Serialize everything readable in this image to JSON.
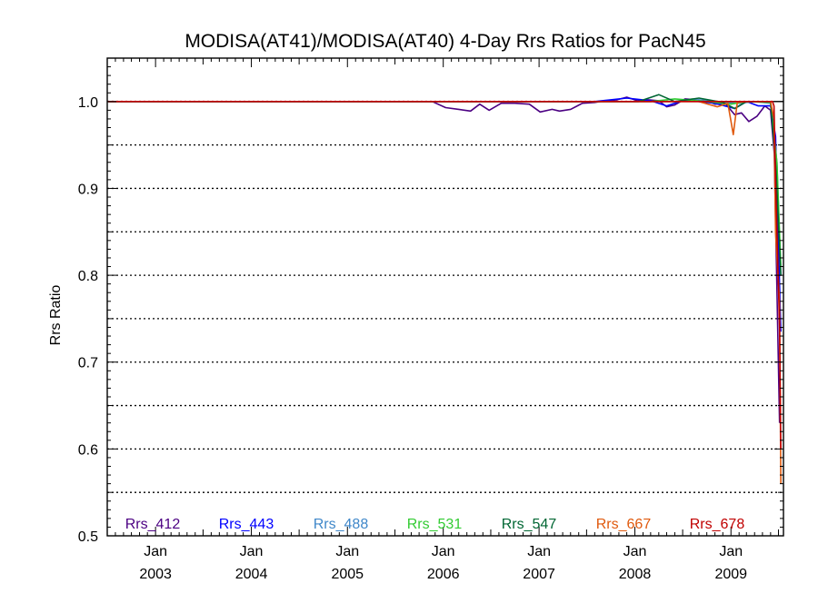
{
  "chart_data": {
    "type": "line",
    "title": "MODISA(AT41)/MODISA(AT40) 4-Day Rrs Ratios for PacN45",
    "ylabel": "Rrs Ratio",
    "xlabel": "",
    "xlim": [
      "2002-07-01",
      "2009-07-20"
    ],
    "ylim": [
      0.5,
      1.05
    ],
    "yticks": [
      {
        "value": 0.5,
        "label": "0.5"
      },
      {
        "value": 0.6,
        "label": "0.6"
      },
      {
        "value": 0.7,
        "label": "0.7"
      },
      {
        "value": 0.8,
        "label": "0.8"
      },
      {
        "value": 0.9,
        "label": "0.9"
      },
      {
        "value": 1.0,
        "label": "1.0"
      }
    ],
    "xticks": [
      {
        "date": "2003-01-01",
        "month": "Jan",
        "year": "2003"
      },
      {
        "date": "2004-01-01",
        "month": "Jan",
        "year": "2004"
      },
      {
        "date": "2005-01-01",
        "month": "Jan",
        "year": "2005"
      },
      {
        "date": "2006-01-01",
        "month": "Jan",
        "year": "2006"
      },
      {
        "date": "2007-01-01",
        "month": "Jan",
        "year": "2007"
      },
      {
        "date": "2008-01-01",
        "month": "Jan",
        "year": "2008"
      },
      {
        "date": "2009-01-01",
        "month": "Jan",
        "year": "2009"
      }
    ],
    "gridlines": [
      0.55,
      0.6,
      0.65,
      0.7,
      0.75,
      0.8,
      0.85,
      0.9,
      0.95
    ],
    "reference_line": 1.0,
    "legend_position": "bottom",
    "series": [
      {
        "name": "Rrs_412",
        "color": "#4b0082",
        "points": [
          [
            "2002-07-04",
            1.0
          ],
          [
            "2005-11-20",
            1.0
          ],
          [
            "2006-01-10",
            0.993
          ],
          [
            "2006-03-01",
            0.991
          ],
          [
            "2006-04-15",
            0.989
          ],
          [
            "2006-05-20",
            0.997
          ],
          [
            "2006-06-25",
            0.99
          ],
          [
            "2006-08-10",
            0.998
          ],
          [
            "2006-10-01",
            0.998
          ],
          [
            "2006-11-25",
            0.997
          ],
          [
            "2007-01-05",
            0.988
          ],
          [
            "2007-02-20",
            0.991
          ],
          [
            "2007-03-20",
            0.989
          ],
          [
            "2007-05-01",
            0.991
          ],
          [
            "2007-06-15",
            0.998
          ],
          [
            "2007-08-01",
            0.999
          ],
          [
            "2007-09-10",
            1.001
          ],
          [
            "2007-10-25",
            1.002
          ],
          [
            "2007-12-01",
            1.005
          ],
          [
            "2008-01-10",
            1.001
          ],
          [
            "2008-02-20",
            1.002
          ],
          [
            "2008-04-01",
            1.001
          ],
          [
            "2008-05-01",
            0.994
          ],
          [
            "2008-06-01",
            0.996
          ],
          [
            "2008-07-10",
            1.003
          ],
          [
            "2008-08-20",
            1.002
          ],
          [
            "2008-10-01",
            1.001
          ],
          [
            "2008-11-01",
            0.997
          ],
          [
            "2008-12-10",
            0.998
          ],
          [
            "2009-01-15",
            0.985
          ],
          [
            "2009-02-10",
            0.987
          ],
          [
            "2009-03-10",
            0.977
          ],
          [
            "2009-04-10",
            0.983
          ],
          [
            "2009-05-10",
            0.995
          ],
          [
            "2009-06-01",
            0.99
          ],
          [
            "2009-06-15",
            0.94
          ],
          [
            "2009-07-05",
            0.63
          ]
        ]
      },
      {
        "name": "Rrs_443",
        "color": "#0000ff",
        "points": [
          [
            "2002-07-04",
            1.0
          ],
          [
            "2007-03-01",
            1.0
          ],
          [
            "2007-08-01",
            1.0
          ],
          [
            "2007-12-01",
            1.004
          ],
          [
            "2008-03-01",
            1.001
          ],
          [
            "2008-05-01",
            0.995
          ],
          [
            "2008-07-10",
            1.002
          ],
          [
            "2008-09-01",
            1.0
          ],
          [
            "2008-11-01",
            0.998
          ],
          [
            "2009-01-15",
            0.992
          ],
          [
            "2009-03-01",
            1.0
          ],
          [
            "2009-04-15",
            0.995
          ],
          [
            "2009-06-01",
            0.995
          ],
          [
            "2009-06-20",
            0.96
          ],
          [
            "2009-07-10",
            0.735
          ]
        ]
      },
      {
        "name": "Rrs_488",
        "color": "#3f87c9",
        "points": [
          [
            "2002-07-04",
            1.0
          ],
          [
            "2008-01-01",
            1.0
          ],
          [
            "2008-06-01",
            1.0
          ],
          [
            "2008-09-01",
            1.002
          ],
          [
            "2008-12-01",
            0.999
          ],
          [
            "2009-02-01",
            0.998
          ],
          [
            "2009-04-01",
            1.0
          ],
          [
            "2009-06-01",
            0.998
          ],
          [
            "2009-06-25",
            0.93
          ],
          [
            "2009-07-10",
            0.8
          ]
        ]
      },
      {
        "name": "Rrs_531",
        "color": "#33cc33",
        "points": [
          [
            "2002-07-04",
            1.0
          ],
          [
            "2008-03-01",
            1.0
          ],
          [
            "2008-06-01",
            1.003
          ],
          [
            "2008-10-01",
            1.0
          ],
          [
            "2009-01-01",
            0.997
          ],
          [
            "2009-03-01",
            1.0
          ],
          [
            "2009-06-01",
            0.999
          ],
          [
            "2009-06-25",
            0.93
          ],
          [
            "2009-07-10",
            0.81
          ]
        ]
      },
      {
        "name": "Rrs_547",
        "color": "#006633",
        "points": [
          [
            "2002-07-04",
            1.0
          ],
          [
            "2008-01-15",
            1.0
          ],
          [
            "2008-04-01",
            1.008
          ],
          [
            "2008-06-01",
            1.0
          ],
          [
            "2008-09-01",
            1.004
          ],
          [
            "2008-12-01",
            0.999
          ],
          [
            "2009-01-15",
            0.992
          ],
          [
            "2009-03-01",
            1.0
          ],
          [
            "2009-06-01",
            1.0
          ],
          [
            "2009-06-22",
            0.92
          ],
          [
            "2009-07-10",
            0.8
          ]
        ]
      },
      {
        "name": "Rrs_667",
        "color": "#e05a0e",
        "points": [
          [
            "2002-07-04",
            1.0
          ],
          [
            "2008-09-01",
            1.0
          ],
          [
            "2008-11-10",
            0.994
          ],
          [
            "2008-12-20",
            0.998
          ],
          [
            "2009-01-10",
            0.962
          ],
          [
            "2009-01-25",
            0.999
          ],
          [
            "2009-03-01",
            1.0
          ],
          [
            "2009-06-01",
            1.0
          ],
          [
            "2009-06-14",
            0.98
          ],
          [
            "2009-06-20",
            0.85
          ],
          [
            "2009-07-05",
            0.77
          ],
          [
            "2009-07-10",
            0.56
          ]
        ]
      },
      {
        "name": "Rrs_678",
        "color": "#c00000",
        "points": [
          [
            "2002-07-04",
            1.0
          ],
          [
            "2009-06-08",
            1.0
          ],
          [
            "2009-06-14",
            0.995
          ],
          [
            "2009-06-20",
            0.91
          ],
          [
            "2009-07-05",
            0.74
          ],
          [
            "2009-07-10",
            0.6
          ]
        ]
      }
    ]
  }
}
